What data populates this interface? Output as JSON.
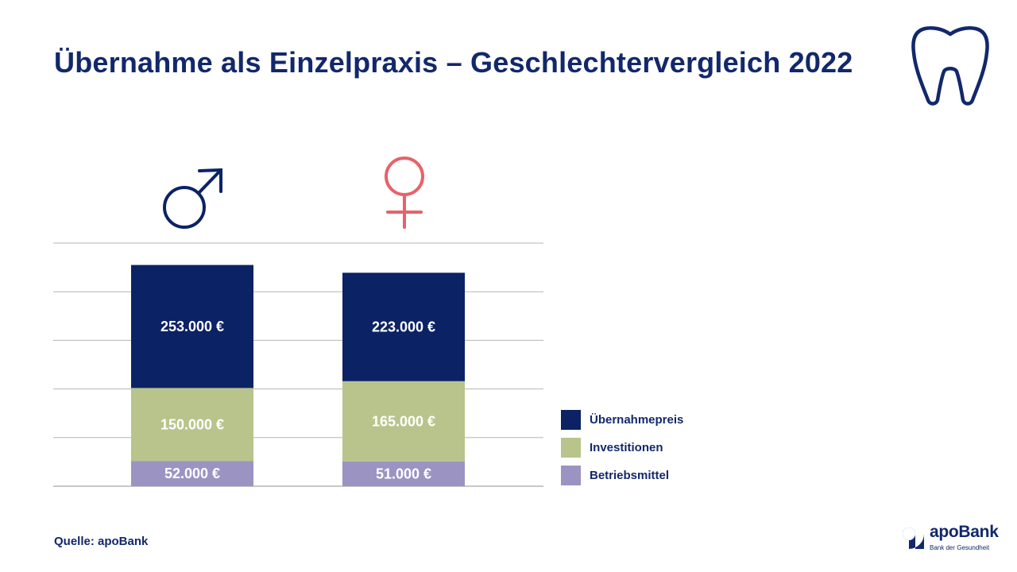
{
  "title": "Übernahme als Einzelpraxis – Geschlechtervergleich 2022",
  "source": "Quelle: apoBank",
  "brand": {
    "name": "apoBank",
    "tagline": "Bank der Gesundheit"
  },
  "colors": {
    "navy": "#0b2265",
    "uebernahmepreis": "#0b2265",
    "investitionen": "#b8c48c",
    "betriebsmittel": "#9b93c2",
    "male_symbol": "#0b2265",
    "female_symbol": "#e8616a",
    "grid": "#b5b5b5"
  },
  "icons": {
    "header": "tooth-icon",
    "male": "male-symbol-icon",
    "female": "female-symbol-icon",
    "logo": "apobank-logo-icon"
  },
  "chart_data": {
    "type": "bar",
    "stacked": true,
    "title": "Übernahme als Einzelpraxis – Geschlechtervergleich 2022",
    "categories": [
      "male",
      "female"
    ],
    "category_symbols": [
      "♂",
      "♀"
    ],
    "series": [
      {
        "name": "Betriebsmittel",
        "values": [
          52000,
          51000
        ],
        "labels": [
          "52.000 €",
          "51.000 €"
        ]
      },
      {
        "name": "Investitionen",
        "values": [
          150000,
          165000
        ],
        "labels": [
          "150.000 €",
          "165.000 €"
        ]
      },
      {
        "name": "Übernahmepreis",
        "values": [
          253000,
          223000
        ],
        "labels": [
          "253.000 €",
          "223.000 €"
        ]
      }
    ],
    "ylim": [
      0,
      500000
    ],
    "grid": true,
    "legend_position": "right",
    "legend_order": [
      "Übernahmepreis",
      "Investitionen",
      "Betriebsmittel"
    ]
  }
}
